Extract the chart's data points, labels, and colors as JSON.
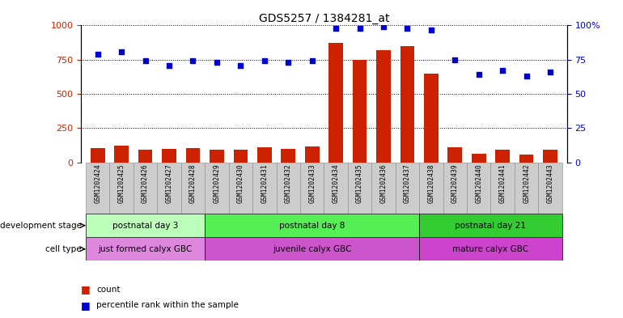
{
  "title": "GDS5257 / 1384281_at",
  "samples": [
    "GSM1202424",
    "GSM1202425",
    "GSM1202426",
    "GSM1202427",
    "GSM1202428",
    "GSM1202429",
    "GSM1202430",
    "GSM1202431",
    "GSM1202432",
    "GSM1202433",
    "GSM1202434",
    "GSM1202435",
    "GSM1202436",
    "GSM1202437",
    "GSM1202438",
    "GSM1202439",
    "GSM1202440",
    "GSM1202441",
    "GSM1202442",
    "GSM1202443"
  ],
  "counts": [
    105,
    120,
    90,
    100,
    105,
    95,
    90,
    110,
    100,
    115,
    870,
    750,
    820,
    850,
    650,
    110,
    65,
    90,
    55,
    90
  ],
  "percentiles": [
    79,
    81,
    74,
    71,
    74,
    73,
    71,
    74,
    73,
    74,
    98,
    98,
    99,
    98,
    97,
    75,
    64,
    67,
    63,
    66
  ],
  "left_ylim": [
    0,
    1000
  ],
  "right_ylim": [
    0,
    100
  ],
  "left_yticks": [
    0,
    250,
    500,
    750,
    1000
  ],
  "right_yticks": [
    0,
    25,
    50,
    75,
    100
  ],
  "bar_color": "#cc2200",
  "dot_color": "#0000cc",
  "development_stages": [
    {
      "label": "postnatal day 3",
      "start": 0,
      "end": 5,
      "color": "#bbffbb"
    },
    {
      "label": "postnatal day 8",
      "start": 5,
      "end": 14,
      "color": "#55ee55"
    },
    {
      "label": "postnatal day 21",
      "start": 14,
      "end": 20,
      "color": "#33cc33"
    }
  ],
  "cell_types": [
    {
      "label": "just formed calyx GBC",
      "start": 0,
      "end": 5,
      "color": "#dd88dd"
    },
    {
      "label": "juvenile calyx GBC",
      "start": 5,
      "end": 14,
      "color": "#cc55cc"
    },
    {
      "label": "mature calyx GBC",
      "start": 14,
      "end": 20,
      "color": "#cc44cc"
    }
  ],
  "dev_stage_label": "development stage",
  "cell_type_label": "cell type",
  "legend_count": "count",
  "legend_pct": "percentile rank within the sample",
  "tick_bg_color": "#cccccc"
}
